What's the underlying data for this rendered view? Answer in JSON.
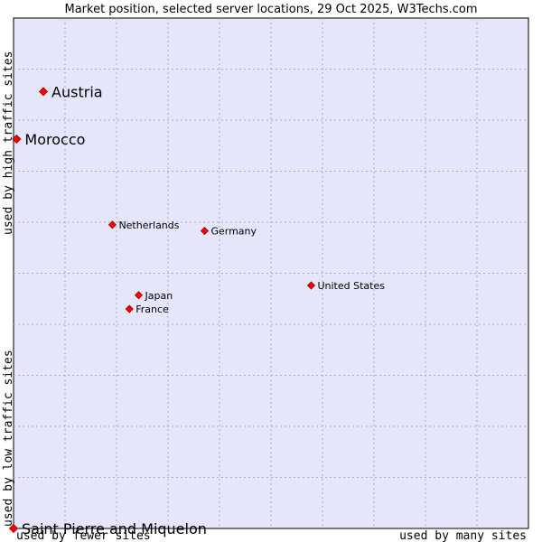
{
  "chart_data": {
    "type": "scatter",
    "title": "Market position, selected server locations, 29 Oct 2025, W3Techs.com",
    "xlabel_low": "used by fewer sites",
    "xlabel_high": "used by many sites",
    "ylabel_low": "used by low traffic sites",
    "ylabel_high": "used by high traffic sites",
    "xlim": [
      0,
      100
    ],
    "ylim": [
      0,
      100
    ],
    "grid": true,
    "colors": {
      "plot_bg": "#e6e6fa",
      "grid": "#a9a9cc",
      "point": "#ff0000",
      "point_edge": "#990000",
      "border": "#000000"
    },
    "points": [
      {
        "label": "Austria",
        "x": 5.8,
        "y": 85.6,
        "emphasis": "large"
      },
      {
        "label": "Morocco",
        "x": 0.6,
        "y": 76.3,
        "emphasis": "large"
      },
      {
        "label": "Netherlands",
        "x": 19.2,
        "y": 59.5,
        "emphasis": "small"
      },
      {
        "label": "Germany",
        "x": 37.1,
        "y": 58.3,
        "emphasis": "small"
      },
      {
        "label": "United States",
        "x": 57.8,
        "y": 47.6,
        "emphasis": "small"
      },
      {
        "label": "Japan",
        "x": 24.3,
        "y": 45.7,
        "emphasis": "small"
      },
      {
        "label": "France",
        "x": 22.5,
        "y": 43.0,
        "emphasis": "small"
      },
      {
        "label": "Saint Pierre and Miquelon",
        "x": 0.0,
        "y": 0.0,
        "emphasis": "large"
      }
    ]
  }
}
